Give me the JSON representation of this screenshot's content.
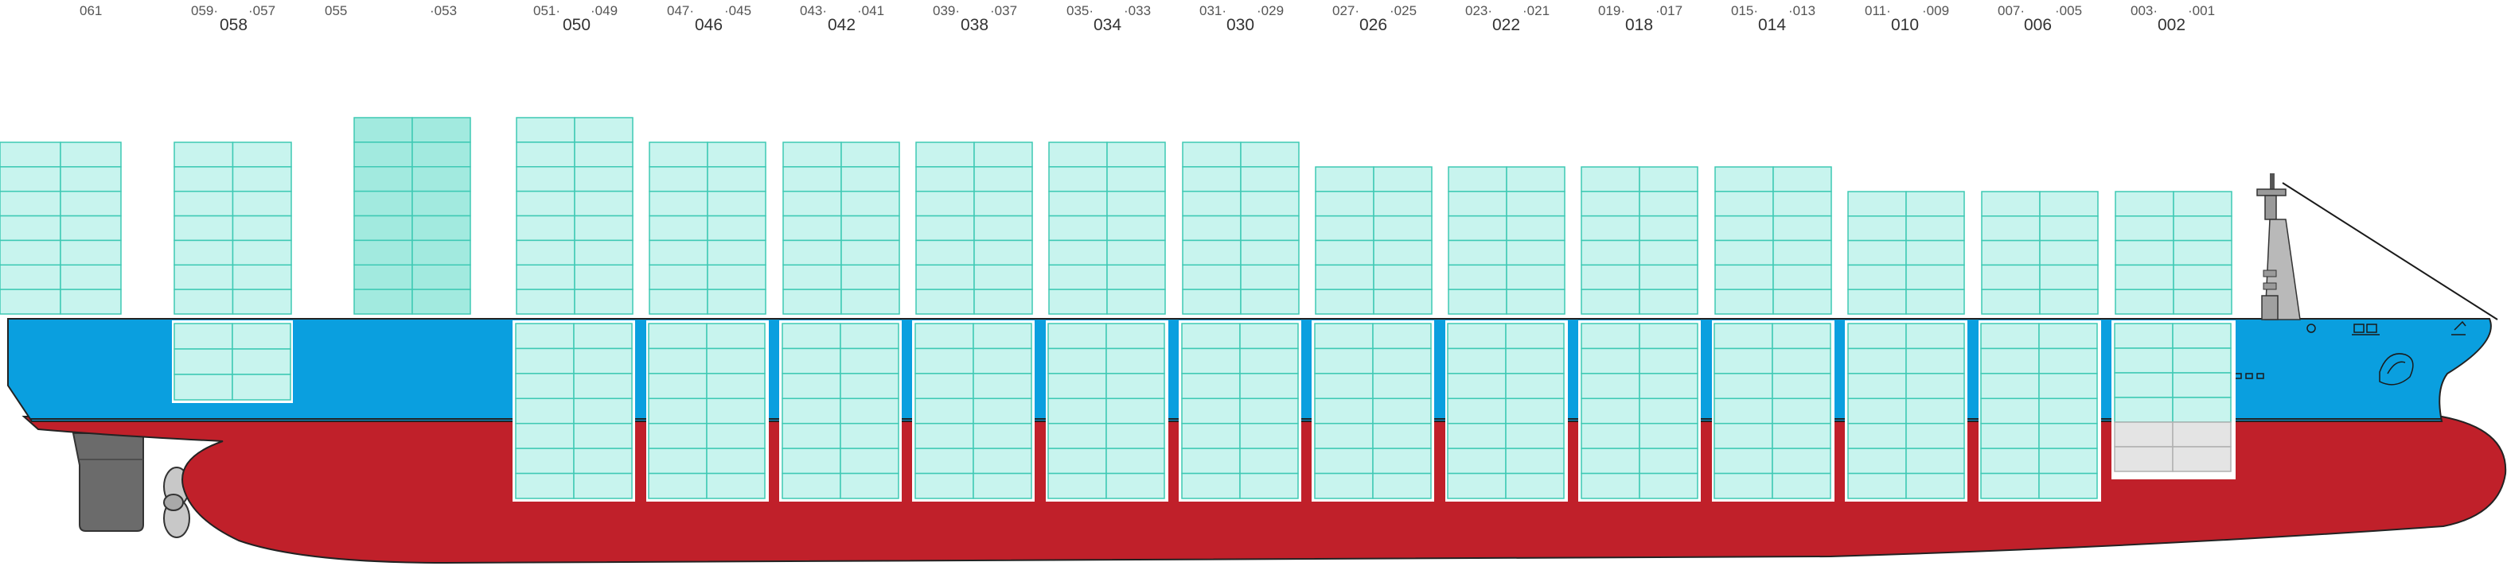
{
  "bays": {
    "odd": [
      "061",
      "059·",
      "·057",
      "055",
      "·053",
      "051·",
      "·049",
      "047·",
      "·045",
      "043·",
      "·041",
      "039·",
      "·037",
      "035·",
      "·033",
      "031·",
      "·029",
      "027·",
      "·025",
      "023·",
      "·021",
      "019·",
      "·017",
      "015·",
      "·013",
      "011·",
      "·009",
      "007·",
      "·005",
      "003·",
      "·001"
    ],
    "even": [
      "058",
      "050",
      "046",
      "042",
      "038",
      "034",
      "030",
      "026",
      "022",
      "018",
      "014",
      "010",
      "006",
      "002"
    ]
  },
  "colors": {
    "hull_top": "#0a9fdf",
    "hull_bottom": "#c0202a",
    "container_fill": "#c8f4ee",
    "container_highlight": "#a2eadf",
    "container_stroke": "#3ec9b4",
    "hold_empty": "#e4e4e4",
    "superstructure": "#b9b9b9",
    "rudder": "#6b6b6b"
  }
}
